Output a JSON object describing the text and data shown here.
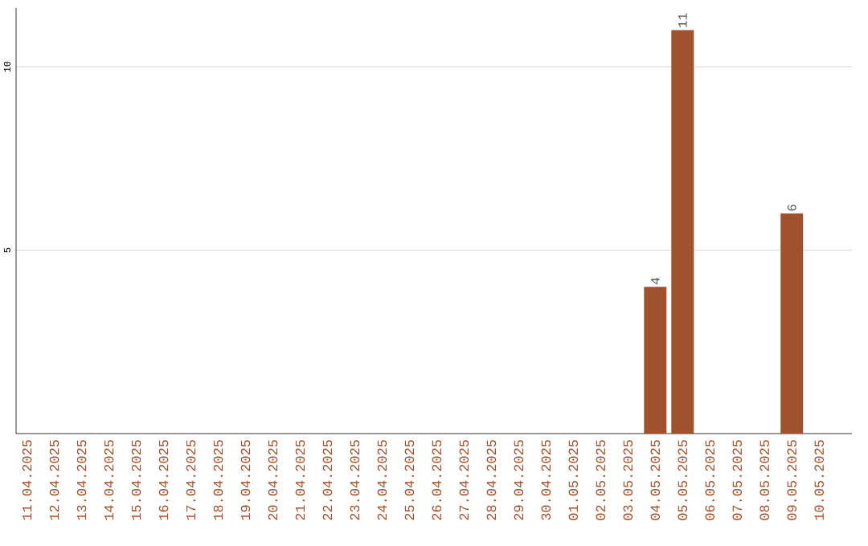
{
  "chart_data": {
    "type": "bar",
    "categories": [
      "11.04.2025",
      "12.04.2025",
      "13.04.2025",
      "14.04.2025",
      "15.04.2025",
      "16.04.2025",
      "17.04.2025",
      "18.04.2025",
      "19.04.2025",
      "20.04.2025",
      "21.04.2025",
      "22.04.2025",
      "23.04.2025",
      "24.04.2025",
      "25.04.2025",
      "26.04.2025",
      "27.04.2025",
      "28.04.2025",
      "29.04.2025",
      "30.04.2025",
      "01.05.2025",
      "02.05.2025",
      "03.05.2025",
      "04.05.2025",
      "05.05.2025",
      "06.05.2025",
      "07.05.2025",
      "08.05.2025",
      "09.05.2025",
      "10.05.2025"
    ],
    "values": [
      0,
      0,
      0,
      0,
      0,
      0,
      0,
      0,
      0,
      0,
      0,
      0,
      0,
      0,
      0,
      0,
      0,
      0,
      0,
      0,
      0,
      0,
      0,
      4,
      11,
      0,
      0,
      0,
      6,
      0
    ],
    "color": "#a0522d",
    "value_labels": [
      null,
      null,
      null,
      null,
      null,
      null,
      null,
      null,
      null,
      null,
      null,
      null,
      null,
      null,
      null,
      null,
      null,
      null,
      null,
      null,
      null,
      null,
      null,
      "4",
      "11",
      null,
      null,
      null,
      "6",
      null
    ],
    "ylim": [
      0,
      11.6
    ],
    "yticks": [
      5,
      10
    ],
    "grid": "y"
  }
}
